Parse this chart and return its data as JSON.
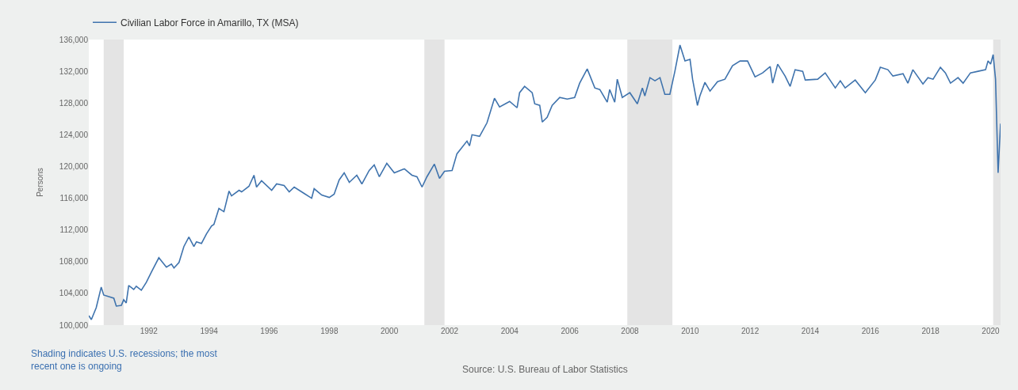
{
  "chart_data": {
    "type": "line",
    "x": [
      "1990-01",
      "1990-02",
      "1990-04",
      "1990-06",
      "1990-07",
      "1990-11",
      "1990-12",
      "1991-02",
      "1991-03",
      "1991-04",
      "1991-05",
      "1991-07",
      "1991-08",
      "1991-10",
      "1991-12",
      "1992-02",
      "1992-05",
      "1992-08",
      "1992-10",
      "1992-11",
      "1993-01",
      "1993-03",
      "1993-05",
      "1993-07",
      "1993-08",
      "1993-10",
      "1993-12",
      "1994-02",
      "1994-03",
      "1994-05",
      "1994-07",
      "1994-09",
      "1994-10",
      "1995-01",
      "1995-02",
      "1995-05",
      "1995-07",
      "1995-08",
      "1995-10",
      "1996-02",
      "1996-04",
      "1996-07",
      "1996-09",
      "1996-11",
      "1997-03",
      "1997-06",
      "1997-07",
      "1997-10",
      "1998-01",
      "1998-03",
      "1998-05",
      "1998-07",
      "1998-09",
      "1998-12",
      "1999-02",
      "1999-05",
      "1999-07",
      "1999-09",
      "1999-12",
      "2000-03",
      "2000-07",
      "2000-10",
      "2000-12",
      "2001-02",
      "2001-04",
      "2001-07",
      "2001-09",
      "2001-11",
      "2002-02",
      "2002-04",
      "2002-08",
      "2002-09",
      "2002-10",
      "2003-01",
      "2003-04",
      "2003-07",
      "2003-09",
      "2004-01",
      "2004-04",
      "2004-05",
      "2004-07",
      "2004-10",
      "2004-11",
      "2005-01",
      "2005-02",
      "2005-04",
      "2005-06",
      "2005-09",
      "2005-12",
      "2006-03",
      "2006-05",
      "2006-08",
      "2006-11",
      "2007-01",
      "2007-04",
      "2007-05",
      "2007-07",
      "2007-08",
      "2007-10",
      "2008-01",
      "2008-04",
      "2008-06",
      "2008-07",
      "2008-09",
      "2008-11",
      "2009-01",
      "2009-03",
      "2009-05",
      "2009-07",
      "2009-09",
      "2009-11",
      "2010-01",
      "2010-02",
      "2010-04",
      "2010-05",
      "2010-07",
      "2010-09",
      "2010-12",
      "2011-03",
      "2011-06",
      "2011-09",
      "2011-12",
      "2012-03",
      "2012-06",
      "2012-09",
      "2012-10",
      "2012-12",
      "2013-03",
      "2013-05",
      "2013-07",
      "2013-10",
      "2013-11",
      "2014-04",
      "2014-07",
      "2014-11",
      "2015-01",
      "2015-03",
      "2015-07",
      "2015-11",
      "2016-03",
      "2016-05",
      "2016-08",
      "2016-10",
      "2017-02",
      "2017-04",
      "2017-06",
      "2017-10",
      "2017-12",
      "2018-02",
      "2018-05",
      "2018-07",
      "2018-09",
      "2018-12",
      "2019-02",
      "2019-05",
      "2019-08",
      "2019-11",
      "2019-12",
      "2020-01",
      "2020-02",
      "2020-03",
      "2020-04",
      "2020-05"
    ],
    "series": [
      {
        "name": "Civilian Labor Force in Amarillo, TX (MSA)",
        "color": "#3f73ad",
        "values": [
          101200,
          100700,
          102200,
          104800,
          103800,
          103400,
          102400,
          102500,
          103200,
          102800,
          105000,
          104500,
          104900,
          104400,
          105400,
          106700,
          108500,
          107300,
          107700,
          107200,
          107900,
          109900,
          111100,
          109900,
          110500,
          110300,
          111500,
          112500,
          112700,
          114700,
          114300,
          116900,
          116300,
          117000,
          116800,
          117500,
          118900,
          117400,
          118200,
          117000,
          117800,
          117600,
          116800,
          117400,
          116600,
          116000,
          117200,
          116400,
          116100,
          116500,
          118300,
          119200,
          118000,
          118900,
          117800,
          119500,
          120200,
          118700,
          120400,
          119200,
          119700,
          118900,
          118700,
          117400,
          118700,
          120300,
          118500,
          119400,
          119500,
          121600,
          123200,
          122600,
          124000,
          123800,
          125500,
          128600,
          127500,
          128200,
          127400,
          129300,
          130100,
          129300,
          127900,
          127700,
          125600,
          126200,
          127700,
          128700,
          128500,
          128700,
          130500,
          132300,
          129900,
          129700,
          128100,
          129700,
          128100,
          131000,
          128700,
          129300,
          127900,
          129900,
          128900,
          131200,
          130800,
          131200,
          129100,
          129100,
          132000,
          135300,
          133300,
          133500,
          131000,
          127700,
          128900,
          130600,
          129500,
          130700,
          131000,
          132700,
          133300,
          133300,
          131300,
          131800,
          132600,
          130500,
          132900,
          131400,
          130100,
          132200,
          132000,
          130900,
          131000,
          131800,
          129900,
          130800,
          129900,
          130900,
          129300,
          130900,
          132500,
          132200,
          131400,
          131700,
          130500,
          132200,
          130400,
          131200,
          131000,
          132500,
          131800,
          130500,
          131200,
          130500,
          131800,
          132000,
          132200,
          133300,
          132900,
          134100,
          131000,
          119200,
          125400
        ]
      }
    ],
    "ylabel": "Persons",
    "xlim": [
      "1990-01",
      "2020-05"
    ],
    "xticks": [
      "1992",
      "1994",
      "1996",
      "1998",
      "2000",
      "2002",
      "2004",
      "2006",
      "2008",
      "2010",
      "2012",
      "2014",
      "2016",
      "2018",
      "2020"
    ],
    "ylim": [
      100000,
      136000
    ],
    "yticks": [
      {
        "value": 100000,
        "label": "100,000"
      },
      {
        "value": 104000,
        "label": "104,000"
      },
      {
        "value": 108000,
        "label": "108,000"
      },
      {
        "value": 112000,
        "label": "112,000"
      },
      {
        "value": 116000,
        "label": "116,000"
      },
      {
        "value": 120000,
        "label": "120,000"
      },
      {
        "value": 124000,
        "label": "124,000"
      },
      {
        "value": 128000,
        "label": "128,000"
      },
      {
        "value": 132000,
        "label": "132,000"
      },
      {
        "value": 136000,
        "label": "136,000"
      }
    ],
    "bands": [
      {
        "axis": "x",
        "from": "1990-07",
        "to": "1991-03",
        "color": "#e4e4e4"
      },
      {
        "axis": "x",
        "from": "2001-03",
        "to": "2001-11",
        "color": "#e4e4e4"
      },
      {
        "axis": "x",
        "from": "2007-12",
        "to": "2009-06",
        "color": "#e4e4e4"
      },
      {
        "axis": "x",
        "from": "2020-02",
        "to": "2020-05",
        "color": "#e4e4e4"
      }
    ],
    "annotations": [
      "Shading indicates U.S. recessions; the most\nrecent one is ongoing",
      "Source: U.S. Bureau of Labor Statistics"
    ],
    "legend": "top left",
    "grid": false
  }
}
